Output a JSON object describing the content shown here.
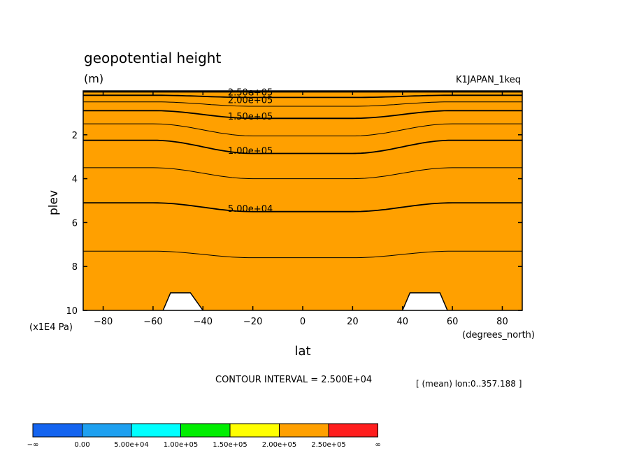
{
  "title": "geopotential height",
  "units": "(m)",
  "run_label": "K1JAPAN_1keq",
  "footer": {
    "contour_interval": "CONTOUR INTERVAL = 2.500E+04",
    "mean_note": "[ (mean) lon:0..357.188 ]"
  },
  "colors": {
    "below_0": "#1464f0",
    "b0_5e4": "#1ea0f0",
    "b5e4_1e5": "#00ffff",
    "b1e5_15e5": "#00ee00",
    "b15e5_2e5": "#ffff00",
    "b2e5_25e5": "#ffa000",
    "above_25e5": "#ff1e1e"
  },
  "chart_data": {
    "type": "contour",
    "title": "geopotential height",
    "units": "(m)",
    "xlabel": "lat",
    "x_unit_label": "(degrees_north)",
    "ylabel": "plev",
    "y_unit_label": "(x1E4 Pa)",
    "xlim": [
      -88,
      88
    ],
    "ylim": [
      10,
      0
    ],
    "xticks": [
      -80,
      -60,
      -40,
      -20,
      0,
      20,
      40,
      60,
      80
    ],
    "xtick_labels": [
      "−80",
      "−60",
      "−40",
      "−20",
      "0",
      "20",
      "40",
      "60",
      "80"
    ],
    "yticks": [
      2,
      4,
      6,
      8,
      10
    ],
    "ytick_labels": [
      "2",
      "4",
      "6",
      "8",
      "10"
    ],
    "contour_interval": 25000,
    "colorbar": {
      "levels": [
        0,
        50000,
        100000,
        150000,
        200000,
        250000
      ],
      "labels": [
        "−∞",
        "0.00",
        "5.00e+04",
        "1.00e+05",
        "1.50e+05",
        "2.00e+05",
        "2.50e+05",
        "∞"
      ]
    },
    "contour_labels": [
      "2.50e+05",
      "2.00e+05",
      "1.50e+05",
      "1.00e+05",
      "5.00e+04"
    ],
    "contours": [
      {
        "level": 250000,
        "lat": [
          -88,
          88
        ],
        "plev": [
          0.02,
          0.02
        ]
      },
      {
        "level": 225000,
        "lat": [
          -88,
          88
        ],
        "plev": [
          0.06,
          0.06
        ]
      },
      {
        "level": 200000,
        "lat": [
          -88,
          -60,
          -20,
          20,
          60,
          88
        ],
        "plev": [
          0.2,
          0.2,
          0.3,
          0.3,
          0.2,
          0.2
        ]
      },
      {
        "level": 175000,
        "lat": [
          -88,
          -60,
          -20,
          20,
          60,
          88
        ],
        "plev": [
          0.5,
          0.5,
          0.7,
          0.7,
          0.5,
          0.5
        ]
      },
      {
        "level": 150000,
        "lat": [
          -88,
          -60,
          -20,
          20,
          60,
          88
        ],
        "plev": [
          0.9,
          0.9,
          1.25,
          1.25,
          0.9,
          0.9
        ]
      },
      {
        "level": 125000,
        "lat": [
          -88,
          -60,
          -20,
          20,
          60,
          88
        ],
        "plev": [
          1.5,
          1.5,
          2.05,
          2.05,
          1.5,
          1.5
        ]
      },
      {
        "level": 100000,
        "lat": [
          -88,
          -60,
          -20,
          20,
          60,
          88
        ],
        "plev": [
          2.25,
          2.25,
          2.85,
          2.85,
          2.25,
          2.25
        ]
      },
      {
        "level": 75000,
        "lat": [
          -88,
          -60,
          -20,
          20,
          60,
          88
        ],
        "plev": [
          3.5,
          3.5,
          4.0,
          4.0,
          3.5,
          3.5
        ]
      },
      {
        "level": 50000,
        "lat": [
          -88,
          -60,
          -20,
          20,
          60,
          88
        ],
        "plev": [
          5.1,
          5.1,
          5.5,
          5.5,
          5.1,
          5.1
        ]
      },
      {
        "level": 25000,
        "lat": [
          -88,
          -60,
          -20,
          20,
          60,
          88
        ],
        "plev": [
          7.3,
          7.3,
          7.6,
          7.6,
          7.3,
          7.3
        ]
      }
    ],
    "masked_regions": [
      {
        "lat": [
          -56,
          -53,
          -45,
          -40
        ],
        "plev": [
          10,
          9.2,
          9.2,
          10
        ]
      },
      {
        "lat": [
          40,
          43,
          55,
          58
        ],
        "plev": [
          10,
          9.2,
          9.2,
          10
        ]
      }
    ]
  }
}
